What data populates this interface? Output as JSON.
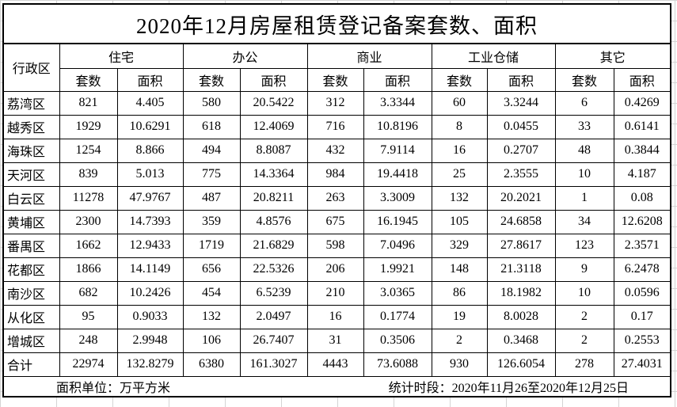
{
  "title": "2020年12月房屋租赁登记备案套数、面积",
  "table": {
    "district_header": "行政区",
    "groups": [
      {
        "label": "住宅"
      },
      {
        "label": "办公"
      },
      {
        "label": "商业"
      },
      {
        "label": "工业仓储"
      },
      {
        "label": "其它"
      }
    ],
    "columns": {
      "count": "套数",
      "area": "面积"
    },
    "rows": [
      {
        "district": "荔湾区",
        "values": [
          "821",
          "4.405",
          "580",
          "20.5422",
          "312",
          "3.3344",
          "60",
          "3.3244",
          "6",
          "0.4269"
        ]
      },
      {
        "district": "越秀区",
        "values": [
          "1929",
          "10.6291",
          "618",
          "12.4069",
          "716",
          "10.8196",
          "8",
          "0.0455",
          "33",
          "0.6141"
        ]
      },
      {
        "district": "海珠区",
        "values": [
          "1254",
          "8.866",
          "494",
          "8.8087",
          "432",
          "7.9114",
          "16",
          "0.2707",
          "48",
          "0.3844"
        ]
      },
      {
        "district": "天河区",
        "values": [
          "839",
          "5.013",
          "775",
          "14.3364",
          "984",
          "19.4418",
          "25",
          "2.3555",
          "10",
          "4.187"
        ]
      },
      {
        "district": "白云区",
        "values": [
          "11278",
          "47.9767",
          "487",
          "20.8211",
          "263",
          "3.3009",
          "132",
          "20.2021",
          "1",
          "0.08"
        ]
      },
      {
        "district": "黄埔区",
        "values": [
          "2300",
          "14.7393",
          "359",
          "4.8576",
          "675",
          "16.1945",
          "105",
          "24.6858",
          "34",
          "12.6208"
        ]
      },
      {
        "district": "番禺区",
        "values": [
          "1662",
          "12.9433",
          "1719",
          "21.6829",
          "598",
          "7.0496",
          "329",
          "27.8617",
          "123",
          "2.3571"
        ]
      },
      {
        "district": "花都区",
        "values": [
          "1866",
          "14.1149",
          "656",
          "22.5326",
          "206",
          "1.9921",
          "148",
          "21.3118",
          "9",
          "6.2478"
        ]
      },
      {
        "district": "南沙区",
        "values": [
          "682",
          "10.2426",
          "454",
          "6.5239",
          "210",
          "3.0365",
          "86",
          "18.1982",
          "10",
          "0.0596"
        ]
      },
      {
        "district": "从化区",
        "values": [
          "95",
          "0.9033",
          "132",
          "2.0497",
          "16",
          "0.1774",
          "19",
          "8.0028",
          "2",
          "0.17"
        ]
      },
      {
        "district": "增城区",
        "values": [
          "248",
          "2.9948",
          "106",
          "26.7407",
          "31",
          "0.3506",
          "2",
          "0.3468",
          "2",
          "0.2553"
        ]
      },
      {
        "district": "合计",
        "values": [
          "22974",
          "132.8279",
          "6380",
          "161.3027",
          "4443",
          "73.6088",
          "930",
          "126.6054",
          "278",
          "27.4031"
        ]
      }
    ],
    "footer": {
      "unit_label": "面积单位：万平方米",
      "period_label": "统计时段：2020年11月26至2020年12月25日"
    }
  }
}
